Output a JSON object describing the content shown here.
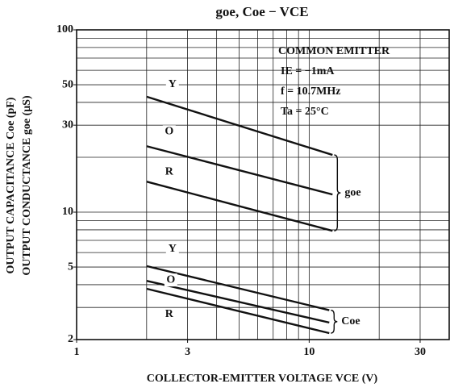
{
  "chart_data": {
    "type": "line",
    "title": "goe, Coe − VCE",
    "x_label": "COLLECTOR-EMITTER   VOLTAGE   VCE  (V)",
    "y_labels": [
      "OUTPUT CAPACITANCE   Coe   (pF)",
      "OUTPUT CONDUCTANCE   goe   (μS)"
    ],
    "annotations": [
      "COMMON EMITTER",
      "IE = −1mA",
      "f = 10.7MHz",
      "Ta = 25°C"
    ],
    "log_x": true,
    "log_y": true,
    "grid": true,
    "xlim": [
      1,
      40
    ],
    "ylim": [
      2,
      100
    ],
    "xticks": [
      1,
      3,
      10,
      30
    ],
    "yticks": [
      2,
      5,
      10,
      30,
      50,
      100
    ],
    "xgrid": [
      1,
      2,
      3,
      4,
      5,
      6,
      7,
      8,
      9,
      10,
      20,
      30,
      40
    ],
    "ygrid": [
      2,
      3,
      4,
      5,
      6,
      7,
      8,
      9,
      10,
      20,
      30,
      40,
      50,
      60,
      70,
      80,
      90,
      100
    ],
    "groups": [
      "goe",
      "Coe"
    ],
    "series": [
      {
        "name": "Y",
        "group": 0,
        "color": "#111111",
        "x": [
          2,
          12.6
        ],
        "values": [
          43,
          20.6
        ]
      },
      {
        "name": "O",
        "group": 0,
        "color": "#111111",
        "x": [
          2,
          12.6
        ],
        "values": [
          23,
          12.5
        ]
      },
      {
        "name": "R",
        "group": 0,
        "color": "#111111",
        "x": [
          2,
          12.6
        ],
        "values": [
          14.7,
          7.9
        ]
      },
      {
        "name": "Y",
        "group": 1,
        "color": "#111111",
        "x": [
          2,
          12.2
        ],
        "values": [
          5.06,
          2.9
        ]
      },
      {
        "name": "O",
        "group": 1,
        "color": "#111111",
        "x": [
          2,
          12.2
        ],
        "values": [
          4.2,
          2.48
        ]
      },
      {
        "name": "R",
        "group": 1,
        "color": "#111111",
        "x": [
          2,
          12.2
        ],
        "values": [
          3.8,
          2.17
        ]
      }
    ]
  }
}
